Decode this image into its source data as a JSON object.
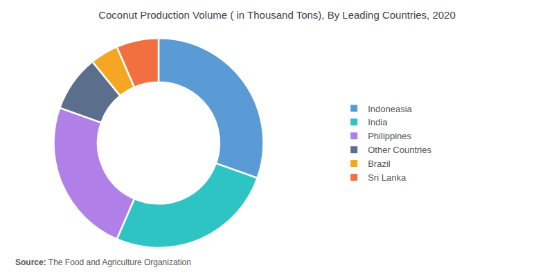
{
  "chart_data": {
    "type": "pie",
    "title": "Coconut Production Volume ( in Thousand Tons), By Leading Countries, 2020",
    "categories": [
      "Indoneasia",
      "India",
      "Philippines",
      "Other Countries",
      "Brazil",
      "Sri Lanka"
    ],
    "values": [
      28,
      24,
      22,
      8,
      4,
      6
    ],
    "colors": [
      "#5B9BD5",
      "#2EC4C4",
      "#B07FE8",
      "#5B6F8C",
      "#F5A623",
      "#F27040"
    ],
    "legend": "right",
    "data_labels": false,
    "annotations": [
      "Source:",
      "The Food and Agriculture Organization"
    ]
  }
}
